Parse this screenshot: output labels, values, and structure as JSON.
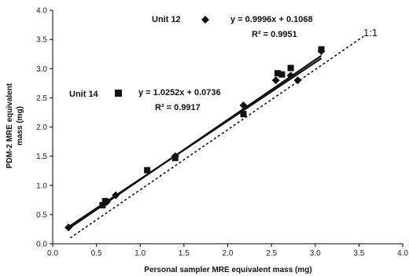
{
  "chart_data": {
    "type": "scatter",
    "xlabel": "Personal sampler MRE equivalent mass (mg)",
    "ylabel_lines": [
      "PDM-2 MRE equivalent",
      "mass (mg)"
    ],
    "xlim": [
      0.0,
      4.0
    ],
    "ylim": [
      0.0,
      4.0
    ],
    "x_ticks": [
      "0.0",
      "0.5",
      "1.0",
      "1.5",
      "2.0",
      "2.5",
      "3.0",
      "3.5",
      "4.0"
    ],
    "y_ticks": [
      "0.0",
      "0.5",
      "1.0",
      "1.5",
      "2.0",
      "2.5",
      "3.0",
      "3.5",
      "4.0"
    ],
    "grid": false,
    "series": [
      {
        "name": "Unit 12",
        "marker": "diamond",
        "equation": "y = 0.9996x + 0.1068",
        "r2": "R² = 0.9951",
        "slope": 0.9996,
        "intercept": 0.1068,
        "points": [
          {
            "x": 0.18,
            "y": 0.28
          },
          {
            "x": 0.58,
            "y": 0.68
          },
          {
            "x": 0.62,
            "y": 0.72
          },
          {
            "x": 0.72,
            "y": 0.83
          },
          {
            "x": 1.4,
            "y": 1.5
          },
          {
            "x": 2.18,
            "y": 2.37
          },
          {
            "x": 2.55,
            "y": 2.8
          },
          {
            "x": 2.72,
            "y": 2.88
          },
          {
            "x": 2.8,
            "y": 2.8
          },
          {
            "x": 3.07,
            "y": 3.3
          }
        ]
      },
      {
        "name": "Unit 14",
        "marker": "square",
        "equation": "y = 1.0252x + 0.0736",
        "r2": "R² = 0.9917",
        "slope": 1.0252,
        "intercept": 0.0736,
        "points": [
          {
            "x": 0.57,
            "y": 0.66
          },
          {
            "x": 0.6,
            "y": 0.73
          },
          {
            "x": 1.08,
            "y": 1.26
          },
          {
            "x": 1.4,
            "y": 1.47
          },
          {
            "x": 2.18,
            "y": 2.22
          },
          {
            "x": 2.57,
            "y": 2.92
          },
          {
            "x": 2.62,
            "y": 2.9
          },
          {
            "x": 2.72,
            "y": 3.01
          },
          {
            "x": 3.07,
            "y": 3.33
          }
        ]
      }
    ],
    "fit_range": [
      0.18,
      3.07
    ],
    "reference_line": {
      "label": "1:1",
      "from": [
        0.2,
        0.1
      ],
      "to": [
        3.55,
        3.55
      ]
    }
  }
}
